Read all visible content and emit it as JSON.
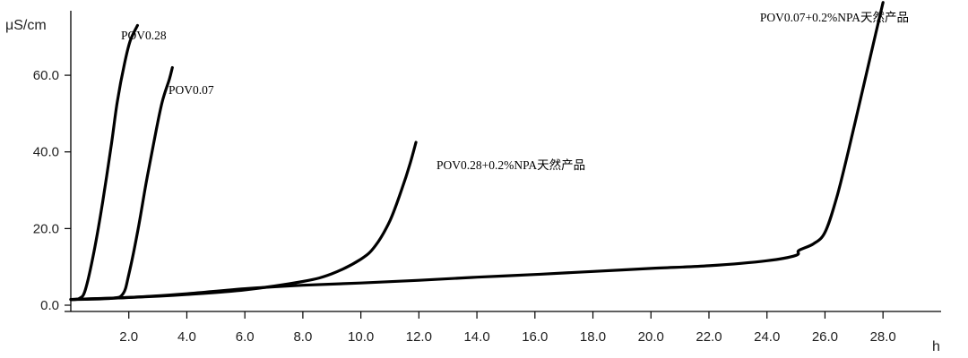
{
  "chart_data": {
    "type": "line",
    "title": "",
    "xlabel": "h",
    "ylabel": "μS/cm",
    "xlim": [
      0,
      29.2
    ],
    "ylim": [
      0,
      78
    ],
    "xticks": [
      2.0,
      4.0,
      6.0,
      8.0,
      10.0,
      12.0,
      14.0,
      16.0,
      18.0,
      20.0,
      22.0,
      24.0,
      26.0,
      28.0
    ],
    "xtick_labels": [
      "2.0",
      "4.0",
      "6.0",
      "8.0",
      "10.0",
      "12.0",
      "14.0",
      "16.0",
      "18.0",
      "20.0",
      "22.0",
      "24.0",
      "26.0",
      "28.0"
    ],
    "yticks": [
      0,
      20,
      40,
      60
    ],
    "ytick_labels": [
      "0.0",
      "20.0",
      "40.0",
      "60.0"
    ],
    "grid": false,
    "legend": "none",
    "series": [
      {
        "name": "POV0.28",
        "points": [
          [
            0,
            1.5
          ],
          [
            0.3,
            1.8
          ],
          [
            0.5,
            4
          ],
          [
            0.8,
            14
          ],
          [
            1.1,
            27
          ],
          [
            1.4,
            42
          ],
          [
            1.6,
            53
          ],
          [
            1.85,
            63
          ],
          [
            2.05,
            69
          ],
          [
            2.3,
            73
          ]
        ]
      },
      {
        "name": "POV0.07",
        "points": [
          [
            0,
            1.5
          ],
          [
            1.4,
            1.8
          ],
          [
            1.8,
            3
          ],
          [
            2.0,
            8
          ],
          [
            2.3,
            19
          ],
          [
            2.6,
            32
          ],
          [
            2.9,
            44
          ],
          [
            3.15,
            53
          ],
          [
            3.4,
            59
          ],
          [
            3.5,
            62
          ]
        ]
      },
      {
        "name": "POV0.28+0.2%NPA天然产品",
        "points": [
          [
            0,
            1.5
          ],
          [
            2,
            2
          ],
          [
            4,
            2.8
          ],
          [
            6,
            4
          ],
          [
            8,
            6.2
          ],
          [
            9,
            8.2
          ],
          [
            10,
            12
          ],
          [
            10.5,
            15.5
          ],
          [
            11,
            22
          ],
          [
            11.4,
            30
          ],
          [
            11.7,
            37
          ],
          [
            11.9,
            42.5
          ]
        ]
      },
      {
        "name": "POV0.07+0.2%NPA天然产品",
        "points": [
          [
            0,
            1.5
          ],
          [
            2,
            2
          ],
          [
            4,
            3
          ],
          [
            6,
            4.3
          ],
          [
            8,
            5.2
          ],
          [
            10,
            5.8
          ],
          [
            12,
            6.5
          ],
          [
            14,
            7.3
          ],
          [
            16,
            8
          ],
          [
            18,
            8.8
          ],
          [
            20,
            9.6
          ],
          [
            22,
            10.3
          ],
          [
            24,
            11.6
          ],
          [
            25,
            13
          ],
          [
            25.1,
            14.3
          ],
          [
            25.6,
            16
          ],
          [
            26.0,
            19
          ],
          [
            26.4,
            28
          ],
          [
            26.8,
            40
          ],
          [
            27.2,
            53
          ],
          [
            27.6,
            66
          ],
          [
            28.0,
            79
          ]
        ]
      }
    ]
  }
}
